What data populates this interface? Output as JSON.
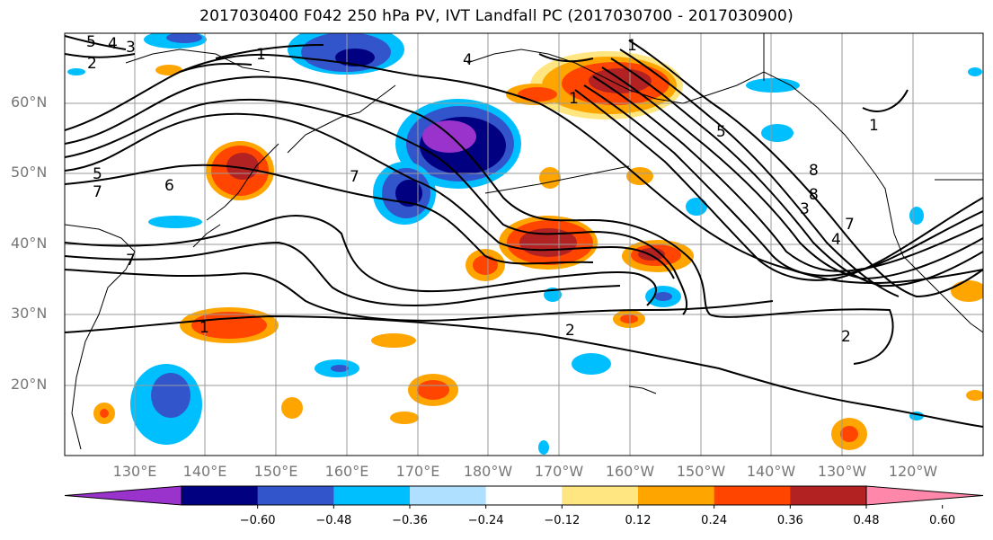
{
  "title": "2017030400 F042 250 hPa PV, IVT Landfall PC (2017030700 - 2017030900)",
  "lat_labels": [
    "60°N",
    "50°N",
    "40°N",
    "30°N",
    "20°N"
  ],
  "lon_labels": [
    "130°E",
    "140°E",
    "150°E",
    "160°E",
    "170°E",
    "180°W",
    "170°W",
    "160°W",
    "150°W",
    "140°W",
    "130°W",
    "120°W"
  ],
  "colorbar": {
    "ticks": [
      "−0.60",
      "−0.48",
      "−0.36",
      "−0.24",
      "−0.12",
      "0.12",
      "0.24",
      "0.36",
      "0.48",
      "0.60"
    ],
    "colors": [
      "#9933cc",
      "#000080",
      "#3355cc",
      "#00bfff",
      "#b0e0ff",
      "#ffffff",
      "#ffe680",
      "#ffa500",
      "#ff4500",
      "#b22222",
      "#ff88aa"
    ]
  },
  "contour_labels": [
    "5",
    "4",
    "3",
    "2",
    "1",
    "1",
    "5",
    "7",
    "6",
    "7",
    "1",
    "5",
    "8",
    "8",
    "3",
    "7",
    "4",
    "1",
    "7",
    "1",
    "4",
    "2",
    "2"
  ],
  "colors": {
    "positive_strong": "#b22222",
    "positive": "#ff4500",
    "warm": "#ffa500",
    "light_warm": "#ffe680",
    "neg_light": "#b0e0ff",
    "neg": "#00bfff",
    "neg_mid": "#3355cc",
    "neg_strong": "#000080",
    "neg_extreme": "#9933cc"
  }
}
